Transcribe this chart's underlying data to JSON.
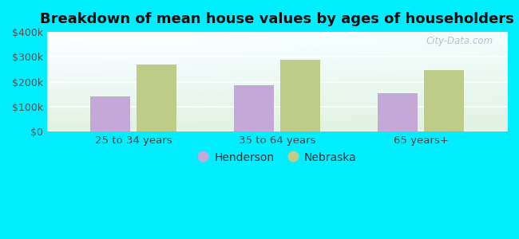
{
  "title": "Breakdown of mean house values by ages of householders",
  "categories": [
    "25 to 34 years",
    "35 to 64 years",
    "65 years+"
  ],
  "henderson_values": [
    140000,
    185000,
    155000
  ],
  "nebraska_values": [
    270000,
    287000,
    245000
  ],
  "henderson_color": "#c4a8d8",
  "nebraska_color": "#bfcc88",
  "ylim": [
    0,
    400000
  ],
  "yticks": [
    0,
    100000,
    200000,
    300000,
    400000
  ],
  "ytick_labels": [
    "$0",
    "$100k",
    "$200k",
    "$300k",
    "$400k"
  ],
  "background_outer": "#00eeff",
  "watermark": "City-Data.com",
  "legend_henderson": "Henderson",
  "legend_nebraska": "Nebraska",
  "bar_width": 0.28,
  "title_fontsize": 13
}
